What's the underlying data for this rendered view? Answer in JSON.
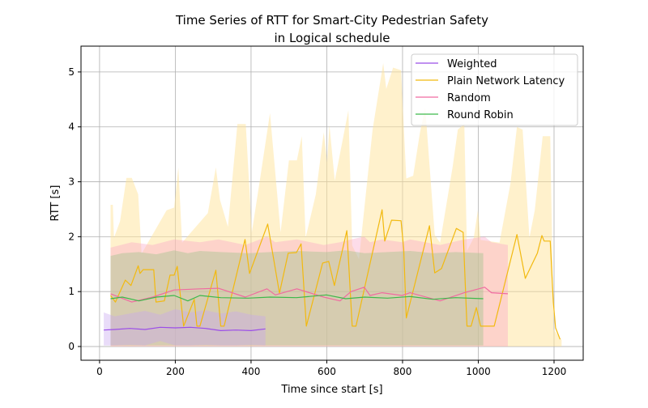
{
  "chart_data": {
    "type": "line",
    "title": "Time Series of RTT for Smart-City Pedestrian Safety",
    "subtitle": "in Logical schedule",
    "xlabel": "Time since start [s]",
    "ylabel": "RTT [s]",
    "xlim": [
      -49,
      1277
    ],
    "ylim": [
      -0.25,
      5.47
    ],
    "xticks": [
      0,
      200,
      400,
      600,
      800,
      1000,
      1200
    ],
    "yticks": [
      0,
      1,
      2,
      3,
      4,
      5
    ],
    "grid": true,
    "legend_position": "top-right",
    "series": [
      {
        "name": "Weighted",
        "color": "#9b4de8",
        "band_color": "#c9a8f0",
        "x": [
          11,
          40,
          80,
          120,
          160,
          200,
          240,
          280,
          320,
          360,
          400,
          438
        ],
        "y": [
          0.3,
          0.31,
          0.33,
          0.31,
          0.35,
          0.34,
          0.35,
          0.33,
          0.29,
          0.3,
          0.29,
          0.32
        ],
        "band_upper": [
          0.62,
          0.55,
          0.6,
          0.65,
          0.58,
          0.68,
          0.62,
          0.66,
          0.6,
          0.64,
          0.58,
          0.55
        ],
        "band_lower": [
          0.02,
          0.02,
          0.03,
          0.02,
          0.1,
          0.02,
          0.02,
          0.03,
          0.02,
          0.02,
          0.03,
          0.02
        ]
      },
      {
        "name": "Plain Network Latency",
        "color": "#f2b90f",
        "band_color": "#ffe39a",
        "x": [
          29,
          42,
          68,
          83,
          102,
          107,
          115,
          143,
          149,
          171,
          186,
          197,
          205,
          222,
          250,
          257,
          265,
          307,
          320,
          329,
          384,
          396,
          444,
          475,
          498,
          520,
          532,
          546,
          589,
          605,
          620,
          653,
          667,
          677,
          746,
          753,
          771,
          796,
          803,
          810,
          871,
          885,
          903,
          942,
          960,
          970,
          981,
          995,
          1006,
          1042,
          1102,
          1124,
          1156,
          1168,
          1174,
          1190,
          1198,
          1204,
          1216
        ],
        "y": [
          0.93,
          0.81,
          1.21,
          1.11,
          1.47,
          1.33,
          1.4,
          1.4,
          0.81,
          0.83,
          1.3,
          1.3,
          1.46,
          0.37,
          0.86,
          0.37,
          0.37,
          1.39,
          0.37,
          0.37,
          1.95,
          1.33,
          2.23,
          0.97,
          1.7,
          1.71,
          1.87,
          0.37,
          1.52,
          1.55,
          1.11,
          2.11,
          0.37,
          0.37,
          2.49,
          1.92,
          2.3,
          2.29,
          1.78,
          0.52,
          2.2,
          1.34,
          1.42,
          2.15,
          2.08,
          0.37,
          0.37,
          0.71,
          0.37,
          0.37,
          2.04,
          1.24,
          1.7,
          2.02,
          1.92,
          1.92,
          0.81,
          0.34,
          0.13
        ],
        "band_x": [
          29,
          35,
          38,
          54,
          71,
          85,
          102,
          111,
          177,
          197,
          208,
          218,
          286,
          307,
          318,
          339,
          364,
          386,
          402,
          422,
          450,
          478,
          500,
          521,
          534,
          544,
          571,
          592,
          601,
          607,
          621,
          657,
          667,
          685,
          721,
          749,
          757,
          775,
          796,
          810,
          828,
          846,
          860,
          885,
          899,
          932,
          946,
          963,
          970,
          988,
          999,
          1006,
          1056,
          1085,
          1102,
          1117,
          1135,
          1149,
          1170,
          1190,
          1199,
          1220
        ],
        "band_upper": [
          2.58,
          2.58,
          1.98,
          2.28,
          3.07,
          3.07,
          2.77,
          1.69,
          2.48,
          2.53,
          3.26,
          1.89,
          2.43,
          3.26,
          2.67,
          2.18,
          4.05,
          4.05,
          2.08,
          2.97,
          4.25,
          2.08,
          3.39,
          3.39,
          3.83,
          1.98,
          2.77,
          3.9,
          3.36,
          4.03,
          3.02,
          4.3,
          1.84,
          1.59,
          3.95,
          5.16,
          4.69,
          5.08,
          5.03,
          3.06,
          3.11,
          3.9,
          4.35,
          2.03,
          1.89,
          3.26,
          3.95,
          4.05,
          1.74,
          1.98,
          2.48,
          1.94,
          1.89,
          2.97,
          4.0,
          3.95,
          1.98,
          2.48,
          3.83,
          3.83,
          0.31,
          0.12
        ],
        "band_lower": 0
      },
      {
        "name": "Random",
        "color": "#f06aa0",
        "band_color": "#f9a8c8",
        "x": [
          29,
          85,
          140,
          197,
          265,
          314,
          385,
          442,
          464,
          521,
          592,
          635,
          664,
          699,
          714,
          746,
          799,
          820,
          899,
          963,
          1017,
          1035,
          1078
        ],
        "y": [
          0.96,
          0.81,
          0.9,
          1.03,
          1.05,
          1.06,
          0.9,
          1.05,
          0.94,
          1.05,
          0.9,
          0.83,
          1.0,
          1.08,
          0.93,
          0.98,
          0.93,
          0.98,
          0.83,
          0.98,
          1.08,
          0.98,
          0.96
        ],
        "band_upper": [
          1.8,
          1.9,
          1.85,
          1.95,
          1.9,
          1.95,
          1.85,
          2.0,
          1.9,
          1.95,
          1.85,
          1.9,
          1.95,
          2.0,
          1.9,
          1.95,
          1.9,
          1.95,
          1.85,
          1.95,
          2.0,
          1.9,
          1.85
        ],
        "band_lower": 0
      },
      {
        "name": "Round Robin",
        "color": "#3cb94a",
        "band_color": "#9ac48a",
        "x": [
          29,
          60,
          104,
          150,
          197,
          233,
          265,
          320,
          392,
          450,
          520,
          599,
          650,
          700,
          760,
          820,
          880,
          940,
          1013
        ],
        "y": [
          0.87,
          0.9,
          0.83,
          0.9,
          0.93,
          0.83,
          0.93,
          0.89,
          0.88,
          0.9,
          0.89,
          0.94,
          0.87,
          0.9,
          0.88,
          0.91,
          0.86,
          0.89,
          0.87
        ],
        "band_upper": [
          1.65,
          1.7,
          1.72,
          1.68,
          1.75,
          1.7,
          1.74,
          1.72,
          1.7,
          1.72,
          1.74,
          1.72,
          1.75,
          1.7,
          1.72,
          1.74,
          1.7,
          1.72,
          1.7
        ],
        "band_lower": 0.02
      }
    ]
  }
}
